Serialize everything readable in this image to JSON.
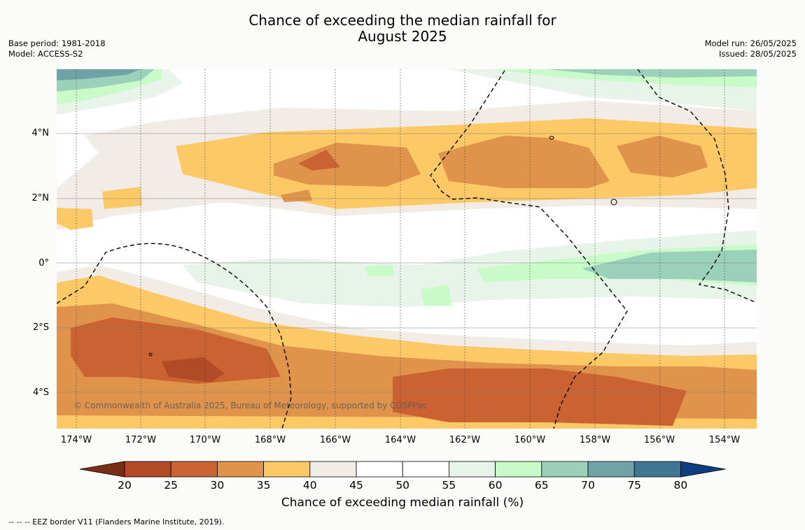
{
  "title": {
    "line1": "Chance of exceeding the median rainfall for",
    "line2": "August 2025"
  },
  "meta_left": {
    "base_period": "Base period: 1981-2018",
    "model": "Model: ACCESS-S2"
  },
  "meta_right": {
    "model_run": "Model run: 26/05/2025",
    "issued": "Issued: 28/05/2025"
  },
  "lat_labels": [
    "4°N",
    "2°N",
    "0°",
    "2°S",
    "4°S"
  ],
  "lon_labels": [
    "174°W",
    "172°W",
    "170°W",
    "168°W",
    "166°W",
    "164°W",
    "162°W",
    "160°W",
    "158°W",
    "156°W",
    "154°W"
  ],
  "copyright": "© Commonwealth of Australia 2025, Bureau of Meteorology, supported by COSPPac",
  "colorbar": {
    "ticks": [
      "20",
      "25",
      "30",
      "35",
      "40",
      "45",
      "50",
      "55",
      "60",
      "65",
      "70",
      "75",
      "80"
    ],
    "colors": [
      "#7a2e15",
      "#b34a27",
      "#cb6231",
      "#e0934a",
      "#fdc967",
      "#f2ece7",
      "#ffffff",
      "#ffffff",
      "#e8f3ea",
      "#c9fbc9",
      "#9bd1bb",
      "#6fa4a6",
      "#3f7695",
      "#0d3f80"
    ],
    "label": "Chance of exceeding median rainfall (%)"
  },
  "footnote": "--  --  -- EEZ border V11 (Flanders Marine Institute, 2019).",
  "map": {
    "lon_range": [
      -174.6,
      -153.0
    ],
    "lat_range": [
      -5.0,
      6.0
    ],
    "lat_ticks": [
      4,
      2,
      0,
      -2,
      -4
    ],
    "lon_ticks": [
      -174,
      -172,
      -170,
      -168,
      -166,
      -164,
      -162,
      -160,
      -158,
      -156,
      -154
    ]
  }
}
